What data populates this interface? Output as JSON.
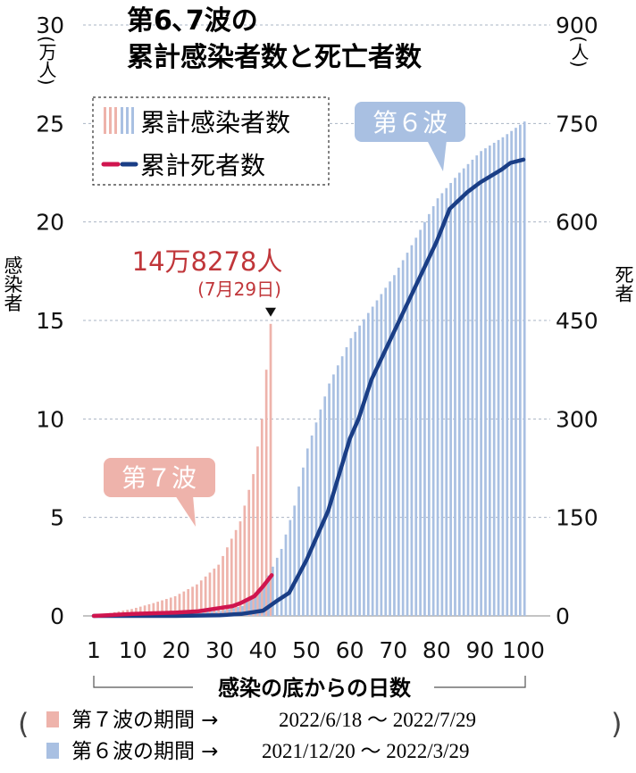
{
  "chart_data": {
    "type": "bar",
    "title_line1": "第6､7波の",
    "title_line2": "累計感染者数と死亡者数",
    "left_axis": {
      "unit": "(万人)",
      "label": "感染者",
      "ylim": [
        0,
        30
      ],
      "ticks": [
        0,
        5,
        10,
        15,
        20,
        25,
        30
      ]
    },
    "right_axis": {
      "unit": "(人)",
      "label": "死者",
      "ylim": [
        0,
        900
      ],
      "ticks": [
        0,
        150,
        300,
        450,
        600,
        750,
        900
      ]
    },
    "x_axis": {
      "label": "感染の底からの日数",
      "range": [
        1,
        100
      ],
      "ticks": [
        1,
        10,
        20,
        30,
        40,
        50,
        60,
        70,
        80,
        90,
        100
      ]
    },
    "legend": {
      "position": "top-left",
      "items": [
        {
          "label": "累計感染者数",
          "kind": "bars"
        },
        {
          "label": "累計死者数",
          "kind": "lines"
        }
      ]
    },
    "wave6_label": "第６波",
    "wave7_label": "第７波",
    "annotation": {
      "value_text": "14万8278人",
      "date_text": "(7月29日)",
      "day": 42,
      "value": 14.8278
    },
    "series": [
      {
        "name": "第6波 累計感染者数",
        "axis": "left",
        "color": "#a9c0e2",
        "points": [
          [
            1,
            0.0
          ],
          [
            10,
            0.05
          ],
          [
            20,
            0.1
          ],
          [
            30,
            0.25
          ],
          [
            35,
            0.5
          ],
          [
            40,
            1.6
          ],
          [
            44,
            3.4
          ],
          [
            47,
            5.6
          ],
          [
            50,
            8.5
          ],
          [
            55,
            11.8
          ],
          [
            60,
            14.1
          ],
          [
            65,
            15.7
          ],
          [
            70,
            17.3
          ],
          [
            75,
            19.2
          ],
          [
            80,
            21.2
          ],
          [
            85,
            22.5
          ],
          [
            90,
            23.6
          ],
          [
            95,
            24.3
          ],
          [
            100,
            25.1
          ]
        ]
      },
      {
        "name": "第7波 累計感染者数",
        "axis": "left",
        "color": "#eeb3ab",
        "points": [
          [
            1,
            0.0
          ],
          [
            5,
            0.15
          ],
          [
            10,
            0.35
          ],
          [
            15,
            0.65
          ],
          [
            20,
            1.0
          ],
          [
            25,
            1.6
          ],
          [
            30,
            2.6
          ],
          [
            35,
            4.8
          ],
          [
            38,
            7.2
          ],
          [
            40,
            10.0
          ],
          [
            41,
            12.5
          ],
          [
            42,
            14.8278
          ]
        ]
      },
      {
        "name": "第7波 累計死者数",
        "axis": "right",
        "color": "#d0154f",
        "points": [
          [
            1,
            0
          ],
          [
            10,
            3
          ],
          [
            20,
            5
          ],
          [
            25,
            7
          ],
          [
            30,
            12
          ],
          [
            33,
            15
          ],
          [
            35,
            20
          ],
          [
            38,
            30
          ],
          [
            40,
            45
          ],
          [
            42,
            62
          ]
        ]
      },
      {
        "name": "第6波 累計死者数",
        "axis": "right",
        "color": "#1a3e86",
        "points": [
          [
            1,
            0
          ],
          [
            20,
            0
          ],
          [
            30,
            1
          ],
          [
            35,
            3
          ],
          [
            40,
            8
          ],
          [
            43,
            22
          ],
          [
            46,
            35
          ],
          [
            50,
            85
          ],
          [
            55,
            160
          ],
          [
            60,
            270
          ],
          [
            62,
            300
          ],
          [
            65,
            360
          ],
          [
            70,
            430
          ],
          [
            75,
            500
          ],
          [
            80,
            570
          ],
          [
            83,
            620
          ],
          [
            87,
            645
          ],
          [
            90,
            660
          ],
          [
            95,
            680
          ],
          [
            97,
            690
          ],
          [
            100,
            695
          ]
        ]
      }
    ]
  },
  "footer": {
    "row1_label": "第７波の期間 →",
    "row1_dates": "2022/6/18 ～ 2022/7/29",
    "row2_label": "第６波の期間 →",
    "row2_dates": "2021/12/20 ～ 2022/3/29"
  }
}
